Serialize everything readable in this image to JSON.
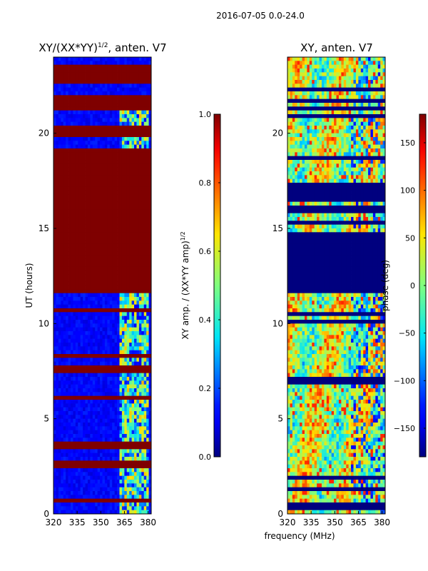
{
  "figure": {
    "suptitle": "2016-07-05 0.0-24.0",
    "shared_xlabel": "frequency (MHz)"
  },
  "colormap": [
    "#00007f",
    "#0000ff",
    "#007fff",
    "#00ffff",
    "#7fff7f",
    "#ffff00",
    "#ff7f00",
    "#ff0000",
    "#7f0000"
  ],
  "chart_data": [
    {
      "type": "heatmap",
      "title": "XY/(XX*YY)",
      "title_sup": "1/2",
      "title_suffix": ", anten. V7",
      "ylabel": "UT (hours)",
      "xlim": [
        320,
        382
      ],
      "ylim": [
        0,
        24
      ],
      "xticks": [
        320,
        335,
        350,
        365,
        380
      ],
      "yticks": [
        0,
        5,
        10,
        15,
        20
      ],
      "colorbar": {
        "label": "XY amp. / (XX*YY amp)",
        "label_sup": "1/2",
        "range": [
          0.0,
          1.0
        ],
        "ticks": [
          "0.0",
          "0.2",
          "0.4",
          "0.6",
          "0.8",
          "1.0"
        ]
      },
      "description": "normalized cross-correlation amplitude vs frequency and UT",
      "flagged_bands_hours": [
        [
          11.6,
          19.0
        ],
        [
          19.9,
          20.3
        ],
        [
          21.3,
          22.0
        ],
        [
          22.6,
          23.5
        ],
        [
          2.4,
          2.6
        ],
        [
          6.0,
          6.2
        ]
      ],
      "active_freq_band_mhz": [
        362,
        380
      ]
    },
    {
      "type": "heatmap",
      "title": "XY, anten. V7",
      "ylabel": "",
      "xlim": [
        320,
        382
      ],
      "ylim": [
        0,
        24
      ],
      "xticks": [
        320,
        335,
        350,
        365,
        380
      ],
      "yticks": [
        0,
        5,
        10,
        15,
        20
      ],
      "colorbar": {
        "label": "phase (deg)",
        "range": [
          -180,
          180
        ],
        "ticks": [
          "−150",
          "−100",
          "−50",
          "0",
          "50",
          "100",
          "150"
        ]
      },
      "description": "cross-correlation phase vs frequency and UT",
      "flagged_bands_hours": [
        [
          11.6,
          14.7
        ],
        [
          15.8,
          16.2
        ],
        [
          16.5,
          17.3
        ]
      ]
    }
  ]
}
